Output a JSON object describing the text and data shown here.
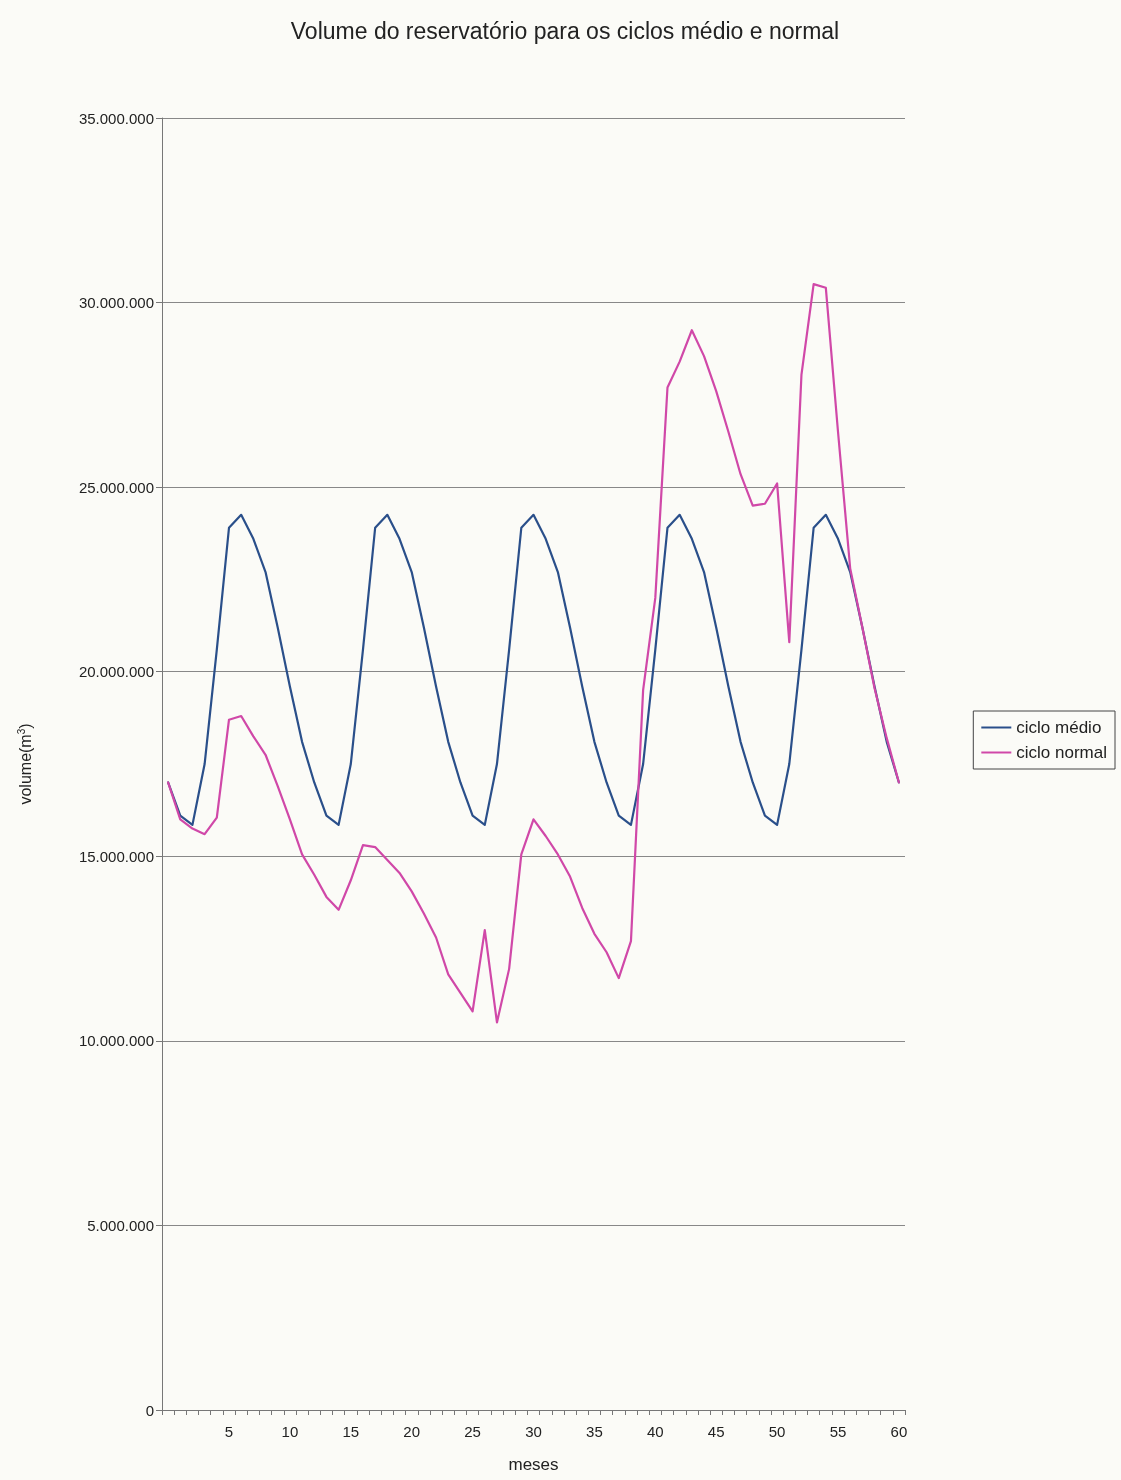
{
  "chart_data": {
    "type": "line",
    "title": "Volume do reservatório para os ciclos médio e normal",
    "xlabel": "meses",
    "ylabel": "volume(m$^{3}$)",
    "categories": [
      null,
      null,
      null,
      null,
      null,
      "5",
      null,
      null,
      null,
      null,
      "10",
      null,
      null,
      null,
      null,
      "15",
      null,
      null,
      null,
      null,
      "20",
      null,
      null,
      null,
      null,
      "25",
      null,
      null,
      null,
      null,
      "30",
      null,
      null,
      null,
      null,
      "35",
      null,
      null,
      null,
      null,
      "40",
      null,
      null,
      null,
      null,
      "45",
      null,
      null,
      null,
      null,
      "50",
      null,
      null,
      null,
      null,
      "55",
      null,
      null,
      null,
      null,
      "60"
    ],
    "series": [
      {
        "name": "ciclo médio",
        "color": "#2a4f8a",
        "values": [
          17000000,
          16100000,
          15850000,
          17500000,
          20600000,
          23900000,
          24250000,
          23600000,
          22700000,
          21200000,
          19600000,
          18100000,
          17000000,
          16100000,
          15850000,
          17500000,
          20600000,
          23900000,
          24250000,
          23600000,
          22700000,
          21200000,
          19600000,
          18100000,
          17000000,
          16100000,
          15850000,
          17500000,
          20600000,
          23900000,
          24250000,
          23600000,
          22700000,
          21200000,
          19600000,
          18100000,
          17000000,
          16100000,
          15850000,
          17500000,
          20600000,
          23900000,
          24250000,
          23600000,
          22700000,
          21200000,
          19600000,
          18100000,
          17000000,
          16100000,
          15850000,
          17500000,
          20600000,
          23900000,
          24250000,
          23600000,
          22700000,
          21200000,
          19600000,
          18100000,
          17000000
        ]
      },
      {
        "name": "ciclo normal",
        "color": "#d048a8",
        "values": [
          17000000,
          16000000,
          15750000,
          15600000,
          16050000,
          18700000,
          18800000,
          18250000,
          17750000,
          16900000,
          16000000,
          15050000,
          14500000,
          13900000,
          13550000,
          14350000,
          15300000,
          15250000,
          14900000,
          14550000,
          14050000,
          13450000,
          12800000,
          11800000,
          11300000,
          10800000,
          13000000,
          10500000,
          11950000,
          15050000,
          16000000,
          15550000,
          15050000,
          14450000,
          13600000,
          12900000,
          12400000,
          11700000,
          12700000,
          19500000,
          22000000,
          27700000,
          28400000,
          29250000,
          28550000,
          27600000,
          26500000,
          25350000,
          24500000,
          24550000,
          25100000,
          20800000,
          28050000,
          30500000,
          30400000,
          26500000,
          22800000,
          21200000,
          19550000,
          18200000,
          17000000
        ]
      }
    ],
    "ylim": [
      0,
      35000000
    ],
    "yticks": [
      0,
      {
        "value": 5000000,
        "label": "5.000.000"
      },
      {
        "value": 10000000,
        "label": "10.000.000"
      },
      {
        "value": 15000000,
        "label": "15.000.000"
      },
      {
        "value": 20000000,
        "label": "20.000.000"
      },
      {
        "value": 25000000,
        "label": "25.000.000"
      },
      {
        "value": 30000000,
        "label": "30.000.000"
      },
      {
        "value": 35000000,
        "label": "35.000.000"
      }
    ],
    "grid": "y",
    "legend": "right",
    "marker": "none",
    "line_style": "solid"
  }
}
